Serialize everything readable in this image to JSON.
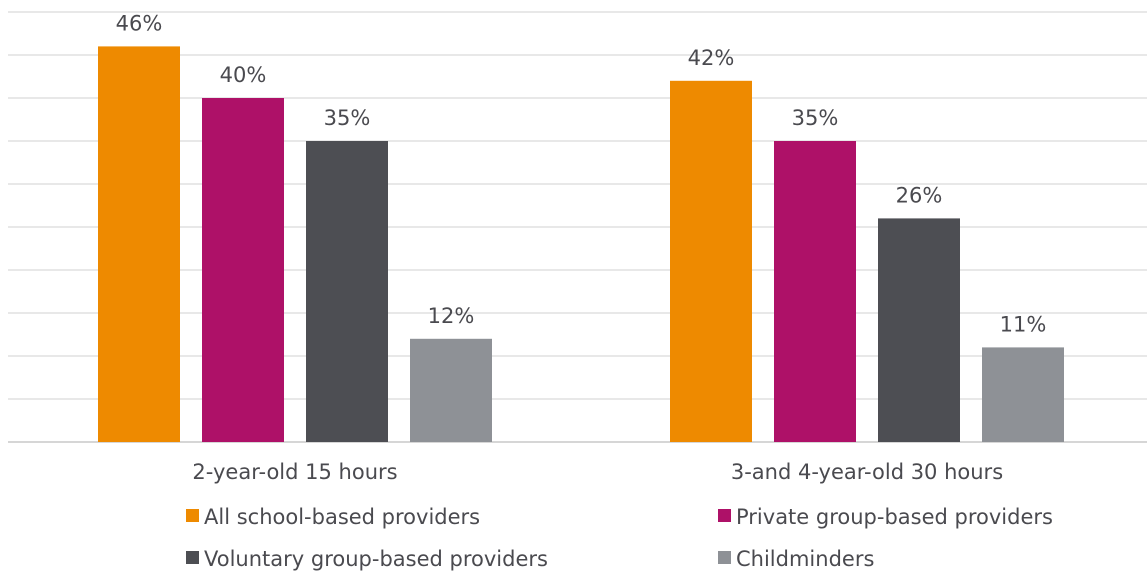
{
  "chart_data": {
    "type": "bar",
    "title": "",
    "xlabel": "",
    "ylabel": "",
    "ylim": [
      0,
      50
    ],
    "y_unit": "%",
    "y_axis_labels_shown": false,
    "grid": true,
    "legend_position": "bottom",
    "categories": [
      "2-year-old 15 hours",
      "3-and 4-year-old 30 hours"
    ],
    "series": [
      {
        "name": "All school-based providers",
        "color": "#ee8a00",
        "values": [
          46,
          42
        ],
        "labels": [
          "46%",
          "42%"
        ]
      },
      {
        "name": "Private group-based providers",
        "color": "#ae1168",
        "values": [
          40,
          35
        ],
        "labels": [
          "40%",
          "35%"
        ]
      },
      {
        "name": "Voluntary group-based providers",
        "color": "#4d4e53",
        "values": [
          35,
          26
        ],
        "labels": [
          "35%",
          "26%"
        ]
      },
      {
        "name": "Childminders",
        "color": "#8e9196",
        "values": [
          12,
          11
        ],
        "labels": [
          "12%",
          "11%"
        ]
      }
    ]
  }
}
